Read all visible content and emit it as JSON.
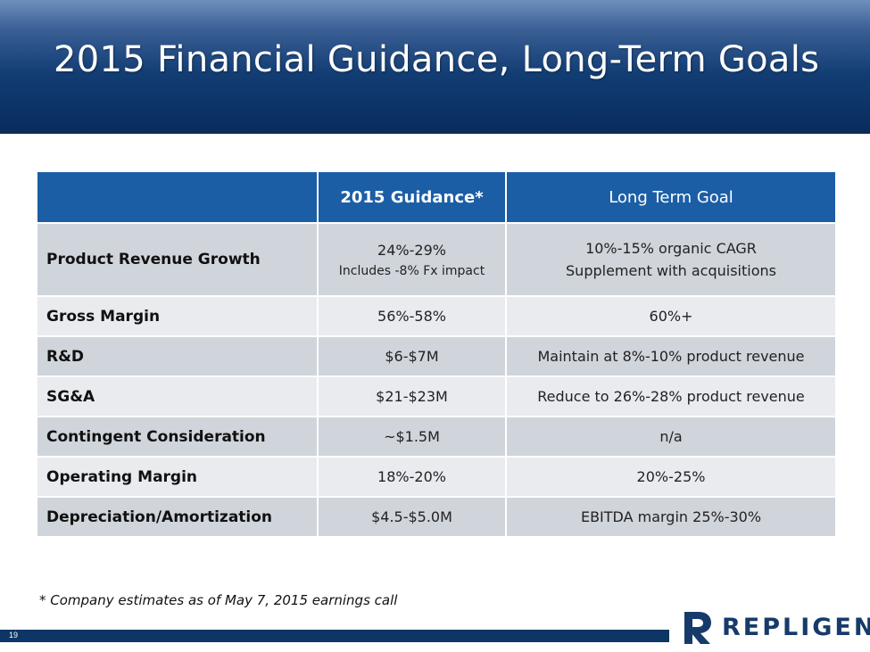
{
  "slide": {
    "title": "2015 Financial Guidance, Long-Term Goals",
    "page_number": "19",
    "footnote": "* Company estimates as of May 7, 2015 earnings call",
    "logo_text": "REPLIGEN",
    "colors": {
      "header_blue": "#1b5ea6",
      "title_navy": "#0d3566",
      "row_dark": "#d0d4db",
      "row_light": "#e9ebef"
    }
  },
  "table": {
    "headers": [
      "",
      "2015 Guidance*",
      "Long Term Goal"
    ],
    "rows": [
      {
        "label": "Product Revenue Growth",
        "guidance": "24%-29%",
        "guidance_note": "Includes -8% Fx impact",
        "goal": "10%-15% organic CAGR",
        "goal_line2": "Supplement with acquisitions"
      },
      {
        "label": "Gross Margin",
        "guidance": "56%-58%",
        "goal": "60%+"
      },
      {
        "label": "R&D",
        "guidance": "$6-$7M",
        "goal": "Maintain at 8%-10% product revenue"
      },
      {
        "label": "SG&A",
        "guidance": "$21-$23M",
        "goal": "Reduce to 26%-28% product revenue"
      },
      {
        "label": "Contingent Consideration",
        "guidance": "~$1.5M",
        "goal": "n/a"
      },
      {
        "label": "Operating Margin",
        "guidance": "18%-20%",
        "goal": "20%-25%"
      },
      {
        "label": "Depreciation/Amortization",
        "guidance": "$4.5-$5.0M",
        "goal": "EBITDA margin 25%-30%"
      }
    ]
  }
}
